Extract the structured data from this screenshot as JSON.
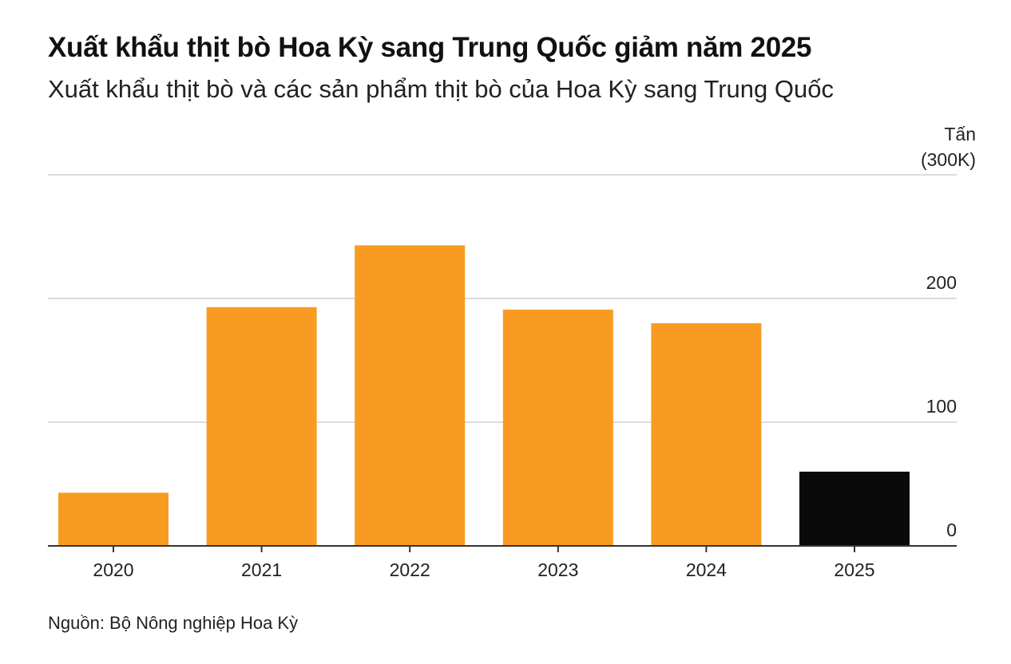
{
  "chart_data": {
    "type": "bar",
    "title": "Xuất khẩu thịt bò Hoa Kỳ sang Trung Quốc giảm năm 2025",
    "subtitle": "Xuất khẩu thịt bò và các sản phẩm thịt bò của Hoa Kỳ sang Trung Quốc",
    "unit_label": "Tấn",
    "unit_top_label": "(300K)",
    "source": "Nguồn: Bộ Nông nghiệp Hoa Kỳ",
    "categories": [
      "2020",
      "2021",
      "2022",
      "2023",
      "2024",
      "2025"
    ],
    "values": [
      43,
      193,
      243,
      191,
      180,
      60
    ],
    "bar_colors": [
      "#f99b22",
      "#f99b22",
      "#f99b22",
      "#f99b22",
      "#f99b22",
      "#0a0a0a"
    ],
    "y_ticks": [
      0,
      100,
      200,
      300
    ],
    "y_tick_labels": [
      "0",
      "100",
      "200",
      ""
    ],
    "ylim": [
      0,
      300
    ],
    "grid": true,
    "y_axis_position": "right"
  }
}
